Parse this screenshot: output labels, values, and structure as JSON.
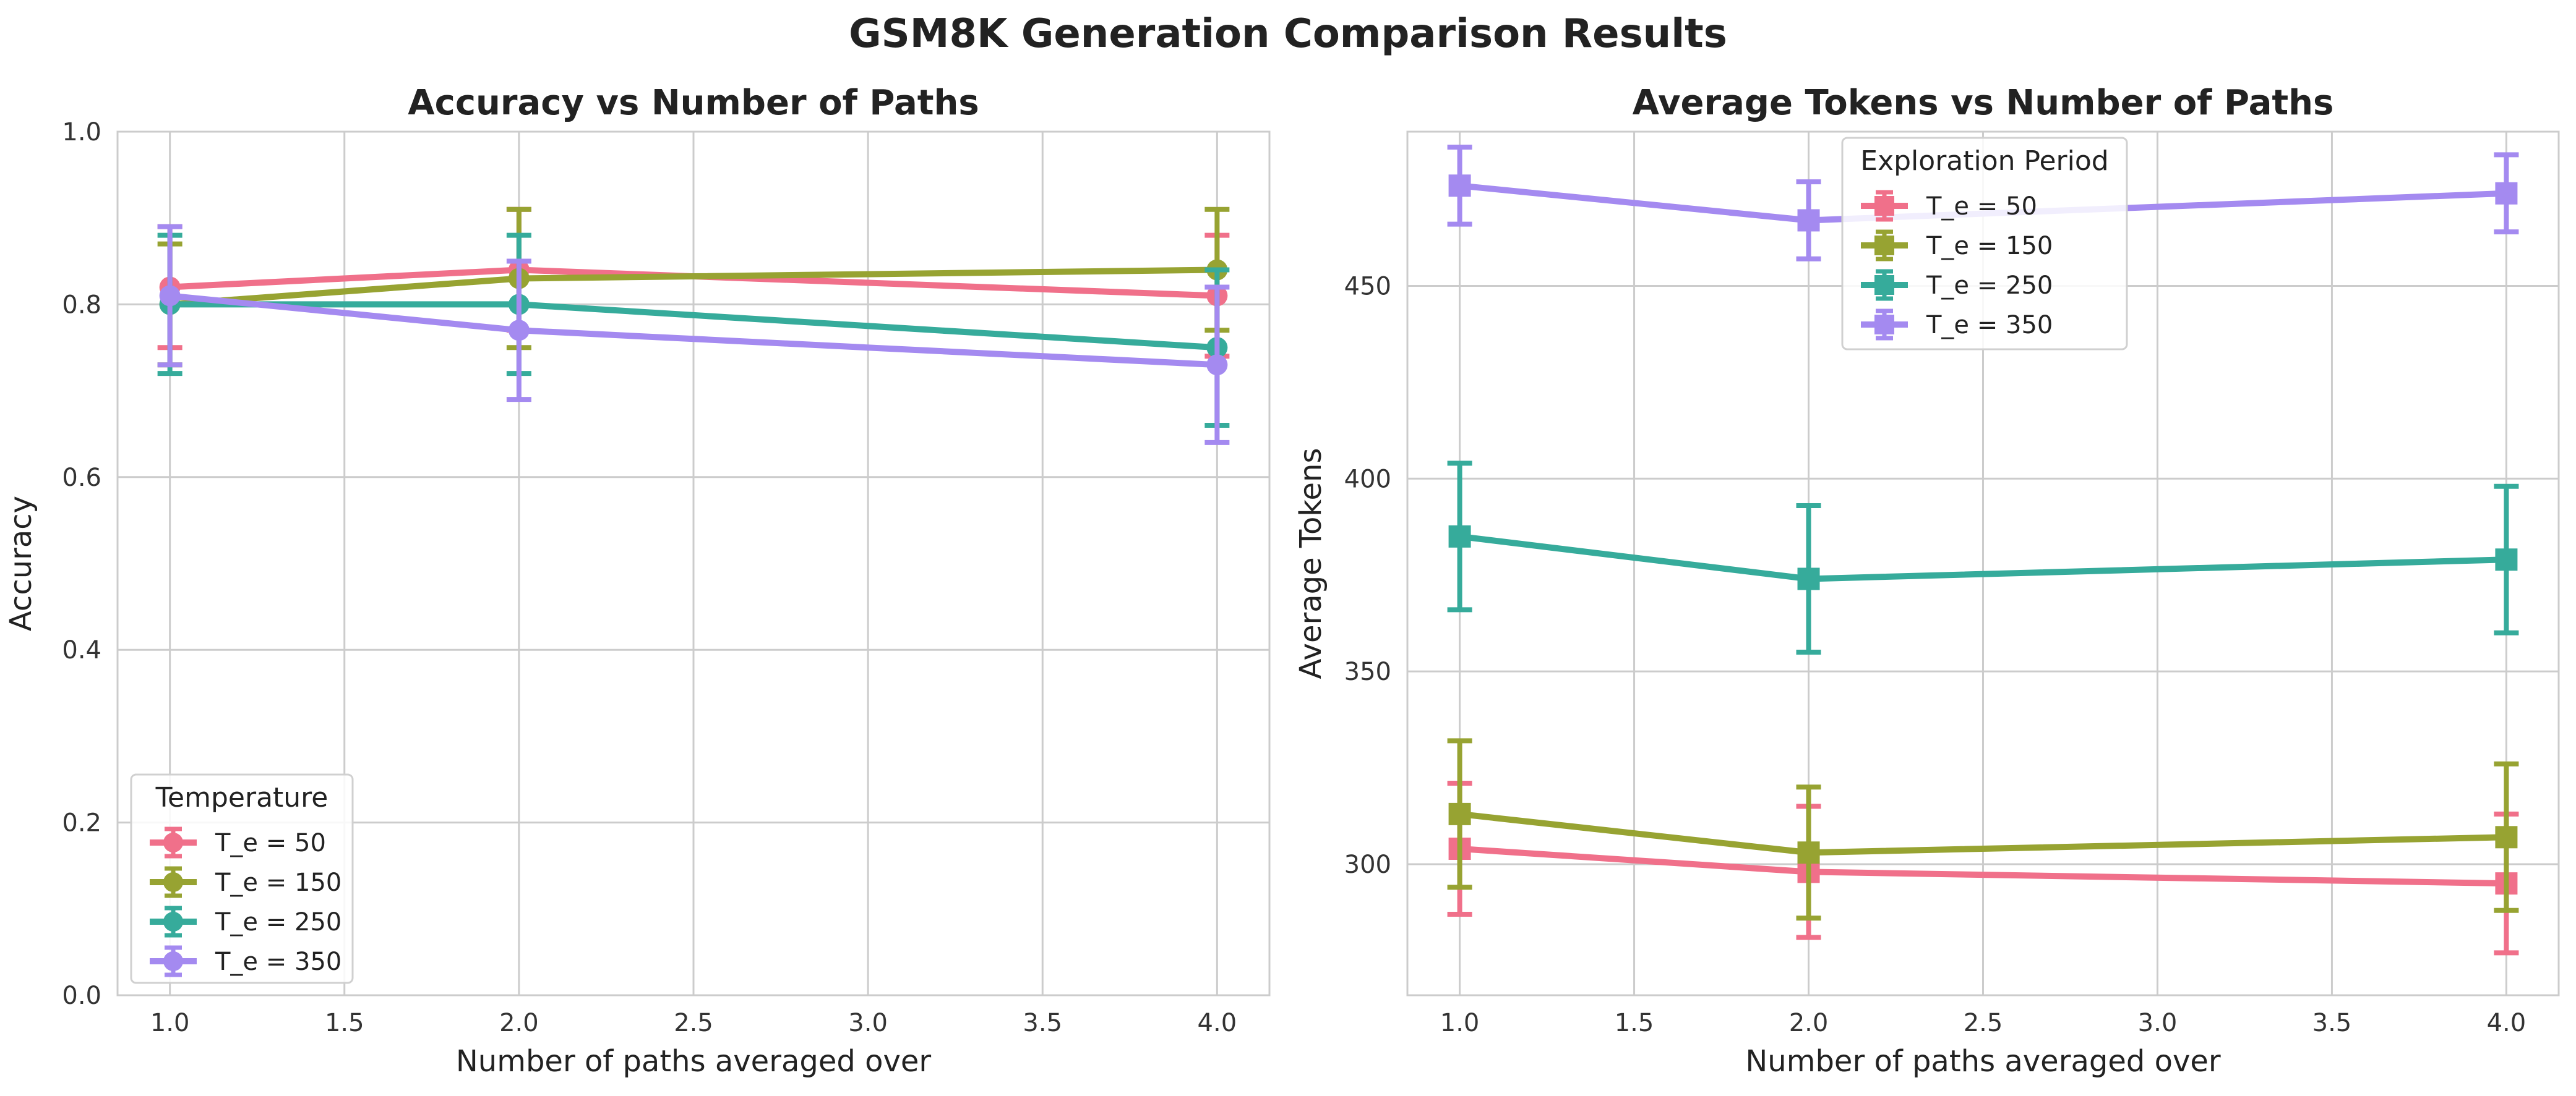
{
  "figure": {
    "title": "GSM8K Generation Comparison Results"
  },
  "chart_data": [
    {
      "type": "line",
      "title": "Accuracy vs Number of Paths",
      "xlabel": "Number of paths averaged over",
      "ylabel": "Accuracy",
      "xlim": [
        0.85,
        4.15
      ],
      "ylim": [
        0.0,
        1.0
      ],
      "xticks": [
        "1.0",
        "1.5",
        "2.0",
        "2.5",
        "3.0",
        "3.5",
        "4.0"
      ],
      "yticks": [
        "0.0",
        "0.2",
        "0.4",
        "0.6",
        "0.8",
        "1.0"
      ],
      "grid": true,
      "legend": {
        "title": "Temperature",
        "placement": "lower-left",
        "marker": "circle"
      },
      "x": [
        1,
        2,
        4
      ],
      "series": [
        {
          "name": "T_e = 50",
          "color": "#f0708a",
          "values": [
            0.82,
            0.84,
            0.81
          ],
          "error": [
            0.07,
            0.07,
            0.07
          ]
        },
        {
          "name": "T_e = 150",
          "color": "#97a332",
          "values": [
            0.8,
            0.83,
            0.84
          ],
          "error": [
            0.07,
            0.08,
            0.07
          ]
        },
        {
          "name": "T_e = 250",
          "color": "#36ab9b",
          "values": [
            0.8,
            0.8,
            0.75
          ],
          "error": [
            0.08,
            0.08,
            0.09
          ]
        },
        {
          "name": "T_e = 350",
          "color": "#a48af0",
          "values": [
            0.81,
            0.77,
            0.73
          ],
          "error": [
            0.08,
            0.08,
            0.09
          ]
        }
      ]
    },
    {
      "type": "line",
      "title": "Average Tokens vs Number of Paths",
      "xlabel": "Number of paths averaged over",
      "ylabel": "Average Tokens",
      "xlim": [
        0.85,
        4.15
      ],
      "ylim": [
        266,
        490
      ],
      "xticks": [
        "1.0",
        "1.5",
        "2.0",
        "2.5",
        "3.0",
        "3.5",
        "4.0"
      ],
      "yticks": [
        "300",
        "350",
        "400",
        "450"
      ],
      "grid": true,
      "legend": {
        "title": "Exploration Period",
        "placement": "upper-center",
        "marker": "square"
      },
      "x": [
        1,
        2,
        4
      ],
      "series": [
        {
          "name": "T_e = 50",
          "color": "#f0708a",
          "values": [
            304,
            298,
            295
          ],
          "error": [
            17,
            17,
            18
          ]
        },
        {
          "name": "T_e = 150",
          "color": "#97a332",
          "values": [
            313,
            303,
            307
          ],
          "error": [
            19,
            17,
            19
          ]
        },
        {
          "name": "T_e = 250",
          "color": "#36ab9b",
          "values": [
            385,
            374,
            379
          ],
          "error": [
            19,
            19,
            19
          ]
        },
        {
          "name": "T_e = 350",
          "color": "#a48af0",
          "values": [
            476,
            467,
            474
          ],
          "error": [
            10,
            10,
            10
          ]
        }
      ]
    }
  ]
}
